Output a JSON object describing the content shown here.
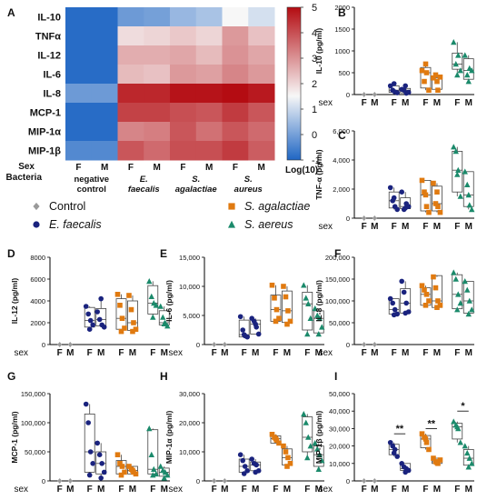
{
  "heatmap": {
    "panel_label": "A",
    "rows": [
      "IL-10",
      "TNFα",
      "IL-12",
      "IL-6",
      "IL-8",
      "MCP-1",
      "MIP-1α",
      "MIP-1β"
    ],
    "columns": [
      "F",
      "M",
      "F",
      "M",
      "F",
      "M",
      "F",
      "M"
    ],
    "sex_label": "Sex",
    "bacteria_label": "Bacteria",
    "groups": [
      {
        "line1": "negative",
        "line2": "control",
        "italic": false
      },
      {
        "line1": "E.",
        "line2": "faecalis",
        "italic": true
      },
      {
        "line1": "S.",
        "line2": "agalactiae",
        "italic": true
      },
      {
        "line1": "S.",
        "line2": "aureus",
        "italic": true
      }
    ],
    "values": [
      [
        -0.9,
        -0.9,
        -0.1,
        0.0,
        0.4,
        0.6,
        1.5,
        1.1
      ],
      [
        -0.9,
        -0.9,
        1.9,
        2.0,
        2.2,
        2.0,
        2.9,
        2.3
      ],
      [
        -0.9,
        -0.9,
        2.6,
        2.6,
        2.7,
        2.4,
        3.0,
        2.7
      ],
      [
        -0.9,
        -0.9,
        2.4,
        2.3,
        2.9,
        2.8,
        3.2,
        2.9
      ],
      [
        -0.1,
        -0.1,
        4.6,
        4.6,
        4.9,
        4.9,
        5.0,
        4.8
      ],
      [
        -0.9,
        -0.9,
        4.2,
        4.2,
        4.0,
        3.9,
        4.3,
        3.9
      ],
      [
        -0.9,
        -0.9,
        3.2,
        3.3,
        3.9,
        3.5,
        3.9,
        3.6
      ],
      [
        -0.4,
        -0.4,
        3.9,
        3.6,
        4.0,
        4.0,
        4.3,
        3.8
      ]
    ],
    "colorbar": {
      "ticks": [
        5,
        4,
        3,
        2,
        1,
        0,
        -1
      ],
      "range": [
        -1,
        5
      ],
      "label": "Log(10)"
    },
    "colors": {
      "low": "#1f66c4",
      "mid": "#f7f7f7",
      "high": "#b40c12"
    }
  },
  "legend": {
    "items": [
      {
        "label": "Control",
        "marker": "diamond",
        "color": "#9a9a9a",
        "italic": false
      },
      {
        "label": "S. agalactiae",
        "marker": "square",
        "color": "#e07a10",
        "italic": true
      },
      {
        "label": "E. faecalis",
        "marker": "circle",
        "color": "#1a237e",
        "italic": true
      },
      {
        "label": "S. aereus",
        "marker": "triangle",
        "color": "#1b8a6b",
        "italic": true
      }
    ]
  },
  "common": {
    "sex_label": "sex",
    "x_labels": [
      "F",
      "M",
      "F",
      "M",
      "F",
      "M",
      "F",
      "M"
    ],
    "group_colors": [
      "#9a9a9a",
      "#1a237e",
      "#e07a10",
      "#1b8a6b"
    ],
    "group_markers": [
      "diamond",
      "circle",
      "square",
      "triangle"
    ]
  },
  "chart_data": [
    {
      "type": "scatter",
      "panel": "B",
      "ylabel": "IL-10 (pg/ml)",
      "ylim": [
        0,
        2000
      ],
      "yticks": [
        0,
        500,
        1000,
        1500,
        2000
      ],
      "tick_labels": [
        "0",
        "500",
        "1000",
        "1500",
        "2000"
      ],
      "series": [
        [
          0,
          0
        ],
        [
          0,
          0
        ],
        [
          200,
          100,
          60,
          40,
          250
        ],
        [
          120,
          100,
          30,
          50,
          200
        ],
        [
          550,
          300,
          500,
          100,
          700
        ],
        [
          380,
          450,
          100,
          400,
          300
        ],
        [
          1200,
          700,
          900,
          550,
          450
        ],
        [
          900,
          450,
          600,
          550,
          300
        ]
      ],
      "boxes": [
        [
          0,
          0
        ],
        [
          0,
          0
        ],
        [
          50,
          200
        ],
        [
          40,
          140
        ],
        [
          150,
          620
        ],
        [
          120,
          420
        ],
        [
          580,
          950
        ],
        [
          350,
          820
        ]
      ],
      "sig": []
    },
    {
      "type": "scatter",
      "panel": "C",
      "ylabel": "TNF-α (pg/ml)",
      "ylim": [
        0,
        6000
      ],
      "yticks": [
        0,
        2000,
        4000,
        6000
      ],
      "tick_labels": [
        "0",
        "2,000",
        "4,000",
        "6,000"
      ],
      "series": [
        [
          0,
          0
        ],
        [
          0,
          0
        ],
        [
          2100,
          1200,
          800,
          600,
          1400
        ],
        [
          1800,
          600,
          1000,
          800,
          700
        ],
        [
          2600,
          1800,
          800,
          400,
          1600
        ],
        [
          2400,
          1000,
          800,
          400,
          1800
        ],
        [
          4900,
          4600,
          3300,
          1500,
          3000
        ],
        [
          3200,
          2300,
          900,
          600,
          1600
        ]
      ],
      "boxes": [
        [
          0,
          0
        ],
        [
          0,
          0
        ],
        [
          700,
          1800
        ],
        [
          650,
          1400
        ],
        [
          500,
          2600
        ],
        [
          500,
          2200
        ],
        [
          1800,
          4600
        ],
        [
          800,
          3200
        ]
      ],
      "sig": []
    },
    {
      "type": "scatter",
      "panel": "D",
      "ylabel": "IL-12 (pg/ml)",
      "ylim": [
        0,
        8000
      ],
      "yticks": [
        0,
        2000,
        4000,
        6000,
        8000
      ],
      "tick_labels": [
        "0",
        "2000",
        "4000",
        "6000",
        "8000"
      ],
      "series": [
        [
          0,
          0
        ],
        [
          0,
          0
        ],
        [
          3500,
          2800,
          2200,
          1800,
          1400
        ],
        [
          3000,
          2300,
          1800,
          1600,
          4200
        ],
        [
          4600,
          3600,
          2400,
          1500,
          1200
        ],
        [
          4500,
          3200,
          2000,
          1400,
          1200
        ],
        [
          5800,
          4400,
          3800,
          3600,
          2500
        ],
        [
          3500,
          2500,
          2000,
          1700,
          1900
        ]
      ],
      "boxes": [
        [
          0,
          0
        ],
        [
          0,
          0
        ],
        [
          1600,
          3400
        ],
        [
          1700,
          3300
        ],
        [
          1400,
          4200
        ],
        [
          1300,
          4000
        ],
        [
          2800,
          5400
        ],
        [
          1800,
          3100
        ]
      ],
      "sig": []
    },
    {
      "type": "scatter",
      "panel": "E",
      "ylabel": "IL-6 (pg/ml)",
      "ylim": [
        0,
        15000
      ],
      "yticks": [
        0,
        5000,
        10000,
        15000
      ],
      "tick_labels": [
        "0",
        "5,000",
        "10,000",
        "15,000"
      ],
      "series": [
        [
          0,
          0
        ],
        [
          0,
          0
        ],
        [
          4800,
          2500,
          1500,
          1300,
          1700
        ],
        [
          4500,
          4000,
          3000,
          1800,
          3500
        ],
        [
          10200,
          8000,
          6000,
          4500,
          4000
        ],
        [
          10000,
          8200,
          5800,
          4000,
          3500
        ],
        [
          10200,
          8000,
          7000,
          4500,
          1800
        ],
        [
          6200,
          5000,
          4500,
          3000,
          1800
        ]
      ],
      "boxes": [
        [
          0,
          0
        ],
        [
          0,
          0
        ],
        [
          1300,
          4200
        ],
        [
          1800,
          4200
        ],
        [
          4000,
          8500
        ],
        [
          3800,
          9200
        ],
        [
          2500,
          9000
        ],
        [
          2000,
          5800
        ]
      ],
      "sig": []
    },
    {
      "type": "scatter",
      "panel": "F",
      "ylabel": "IL-8 (pg/ml)",
      "ylim": [
        0,
        200000
      ],
      "yticks": [
        0,
        50000,
        100000,
        150000,
        200000
      ],
      "tick_labels": [
        "0",
        "50,000",
        "100,000",
        "150,000",
        "200,000"
      ],
      "series": [
        [
          0,
          0
        ],
        [
          0,
          0
        ],
        [
          105000,
          95000,
          80000,
          70000,
          68000
        ],
        [
          145000,
          120000,
          95000,
          75000,
          72000
        ],
        [
          135000,
          125000,
          115000,
          100000,
          90000
        ],
        [
          155000,
          130000,
          100000,
          90000,
          85000
        ],
        [
          165000,
          150000,
          115000,
          95000,
          80000
        ],
        [
          145000,
          125000,
          100000,
          80000,
          70000
        ]
      ],
      "boxes": [
        [
          0,
          0
        ],
        [
          0,
          0
        ],
        [
          70000,
          105000
        ],
        [
          72000,
          128000
        ],
        [
          90000,
          130000
        ],
        [
          85000,
          158000
        ],
        [
          82000,
          160000
        ],
        [
          72000,
          145000
        ]
      ],
      "sig": []
    },
    {
      "type": "scatter",
      "panel": "G",
      "ylabel": "MCP-1 (pg/ml)",
      "ylim": [
        0,
        150000
      ],
      "yticks": [
        0,
        50000,
        100000,
        150000
      ],
      "tick_labels": [
        "0",
        "50,000",
        "100,000",
        "150,000"
      ],
      "series": [
        [
          0,
          0
        ],
        [
          0,
          0
        ],
        [
          132000,
          100000,
          50000,
          30000,
          10000
        ],
        [
          65000,
          45000,
          30000,
          15000,
          5000
        ],
        [
          45000,
          30000,
          25000,
          15000,
          10000
        ],
        [
          25000,
          20000,
          15000,
          12000,
          18000
        ],
        [
          90000,
          45000,
          20000,
          12000,
          10000
        ],
        [
          25000,
          18000,
          15000,
          10000,
          5000
        ]
      ],
      "boxes": [
        [
          0,
          0
        ],
        [
          0,
          0
        ],
        [
          15000,
          115000
        ],
        [
          12000,
          50000
        ],
        [
          12000,
          35000
        ],
        [
          12000,
          25000
        ],
        [
          12000,
          88000
        ],
        [
          8000,
          22000
        ]
      ],
      "sig": []
    },
    {
      "type": "scatter",
      "panel": "H",
      "ylabel": "MIP-1α (pg/ml)",
      "ylim": [
        0,
        30000
      ],
      "yticks": [
        0,
        10000,
        20000,
        30000
      ],
      "tick_labels": [
        "0",
        "10,000",
        "20,000",
        "30,000"
      ],
      "series": [
        [
          0,
          0
        ],
        [
          0,
          0
        ],
        [
          9000,
          7000,
          5000,
          3500,
          2500
        ],
        [
          7500,
          6000,
          5500,
          3500,
          3000
        ],
        [
          16000,
          15000,
          14000,
          13000,
          14500
        ],
        [
          12000,
          10000,
          8000,
          6000,
          5000
        ],
        [
          23000,
          20000,
          15000,
          12000,
          8000
        ],
        [
          13000,
          11000,
          9000,
          7000,
          4000
        ]
      ],
      "boxes": [
        [
          0,
          0
        ],
        [
          0,
          0
        ],
        [
          3000,
          7500
        ],
        [
          3500,
          6500
        ],
        [
          13000,
          15500
        ],
        [
          5500,
          11000
        ],
        [
          10000,
          22000
        ],
        [
          5000,
          12000
        ]
      ],
      "sig": []
    },
    {
      "type": "scatter",
      "panel": "I",
      "ylabel": "MIP-1β (pg/ml)",
      "ylim": [
        0,
        50000
      ],
      "yticks": [
        0,
        10000,
        20000,
        30000,
        40000,
        50000
      ],
      "tick_labels": [
        "0",
        "10,000",
        "20,000",
        "30,000",
        "40,000",
        "50,000"
      ],
      "series": [
        [
          0,
          0
        ],
        [
          0,
          0
        ],
        [
          22000,
          20000,
          18000,
          14000,
          16000
        ],
        [
          10000,
          8000,
          7000,
          6000,
          5000
        ],
        [
          27000,
          25000,
          22000,
          18000,
          24000
        ],
        [
          13000,
          11000,
          10000,
          12000,
          10500
        ],
        [
          34000,
          32000,
          30000,
          22000,
          31000
        ],
        [
          20000,
          16000,
          13000,
          10000,
          8000
        ]
      ],
      "boxes": [
        [
          0,
          0
        ],
        [
          0,
          0
        ],
        [
          15000,
          21000
        ],
        [
          6000,
          10000
        ],
        [
          19000,
          26000
        ],
        [
          10000,
          13000
        ],
        [
          24000,
          33000
        ],
        [
          9000,
          18000
        ]
      ],
      "sig": [
        {
          "from": 2,
          "to": 3,
          "label": "**",
          "y": 27000
        },
        {
          "from": 4,
          "to": 5,
          "label": "**",
          "y": 30000
        },
        {
          "from": 6,
          "to": 7,
          "label": "*",
          "y": 40000
        }
      ]
    }
  ]
}
